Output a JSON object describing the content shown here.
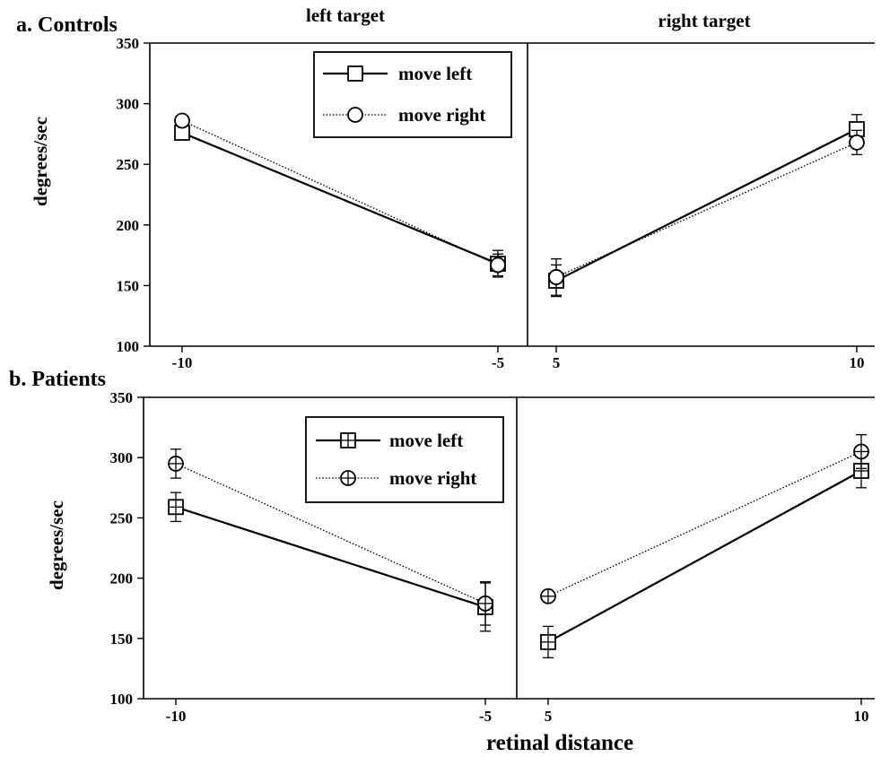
{
  "chart_data": {
    "type": "line",
    "column_titles": [
      "left target",
      "right target"
    ],
    "xlabel": "retinal distance",
    "panels": [
      {
        "title": "a. Controls",
        "ylabel": "degrees/sec",
        "ylim": [
          100,
          350
        ],
        "yticks": [
          100,
          150,
          200,
          250,
          300,
          350
        ],
        "groups": [
          {
            "target": "left target",
            "x": [
              -10,
              -5
            ]
          },
          {
            "target": "right target",
            "x": [
              5,
              10
            ]
          }
        ],
        "series": [
          {
            "name": "move left",
            "marker": "square",
            "line": "solid",
            "left": {
              "y": [
                276,
                168
              ],
              "err": [
                null,
                11
              ]
            },
            "right": {
              "y": [
                154,
                279
              ],
              "err": [
                13,
                12
              ]
            }
          },
          {
            "name": "move right",
            "marker": "circle",
            "line": "dotted",
            "left": {
              "y": [
                286,
                167
              ],
              "err": [
                null,
                9
              ]
            },
            "right": {
              "y": [
                157,
                268
              ],
              "err": [
                15,
                10
              ]
            }
          }
        ],
        "legend": "top-left"
      },
      {
        "title": "b. Patients",
        "ylabel": "degrees/sec",
        "ylim": [
          100,
          350
        ],
        "yticks": [
          100,
          150,
          200,
          250,
          300,
          350
        ],
        "groups": [
          {
            "target": "left target",
            "x": [
              -10,
              -5
            ]
          },
          {
            "target": "right target",
            "x": [
              5,
              10
            ]
          }
        ],
        "series": [
          {
            "name": "move left",
            "marker": "square-cross",
            "line": "solid",
            "left": {
              "y": [
                259,
                176
              ],
              "err": [
                12,
                20
              ]
            },
            "right": {
              "y": [
                147,
                289
              ],
              "err": [
                13,
                14
              ]
            }
          },
          {
            "name": "move right",
            "marker": "circle-cross",
            "line": "dotted",
            "left": {
              "y": [
                295,
                179
              ],
              "err": [
                12,
                18
              ]
            },
            "right": {
              "y": [
                185,
                305
              ],
              "err": [
                null,
                14
              ]
            }
          }
        ],
        "legend": "top-left"
      }
    ],
    "xtick_labels": [
      "-10",
      "-5",
      "5",
      "10"
    ]
  }
}
